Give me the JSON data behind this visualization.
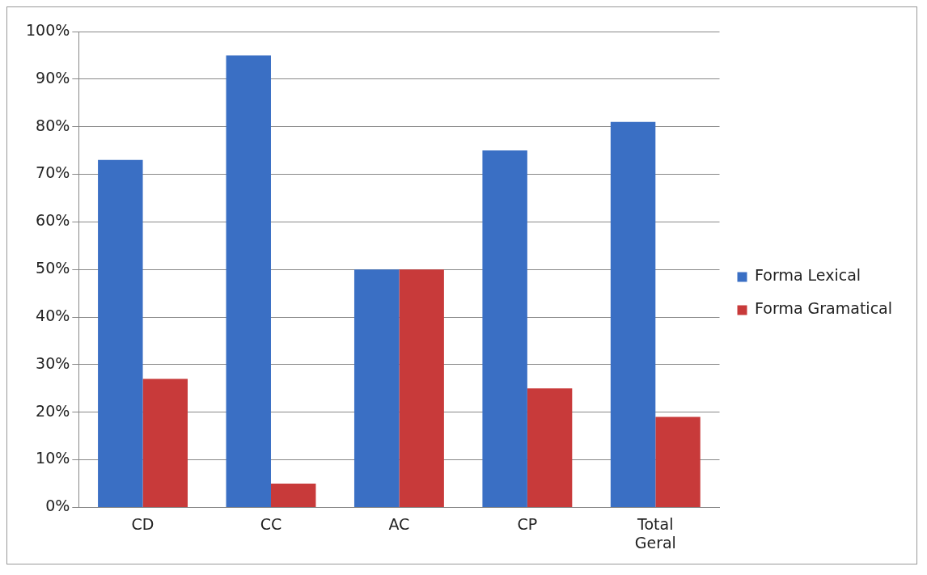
{
  "chart_data": {
    "type": "bar",
    "categories": [
      "CD",
      "CC",
      "AC",
      "CP",
      "Total Geral"
    ],
    "series": [
      {
        "name": "Forma Lexical",
        "color": "#3a6fc4",
        "values": [
          73,
          95,
          50,
          75,
          81
        ]
      },
      {
        "name": "Forma Gramatical",
        "color": "#c83a3a",
        "values": [
          27,
          5,
          50,
          25,
          19
        ]
      }
    ],
    "ylim": [
      0,
      100
    ],
    "yticks": [
      {
        "value": 0,
        "label": "0%"
      },
      {
        "value": 10,
        "label": "10%"
      },
      {
        "value": 20,
        "label": "20%"
      },
      {
        "value": 30,
        "label": "30%"
      },
      {
        "value": 40,
        "label": "40%"
      },
      {
        "value": 50,
        "label": "50%"
      },
      {
        "value": 60,
        "label": "60%"
      },
      {
        "value": 70,
        "label": "70%"
      },
      {
        "value": 80,
        "label": "80%"
      },
      {
        "value": 90,
        "label": "90%"
      },
      {
        "value": 100,
        "label": "100%"
      }
    ],
    "grid": "y",
    "legend": "right"
  }
}
